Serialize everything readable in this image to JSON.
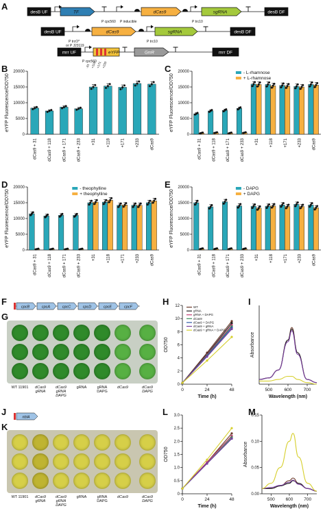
{
  "panels": {
    "A": "A",
    "B": "B",
    "C": "C",
    "D": "D",
    "E": "E",
    "F": "F",
    "G": "G",
    "H": "H",
    "I": "I",
    "J": "J",
    "K": "K",
    "L": "L",
    "M": "M"
  },
  "construct_a": {
    "row1": [
      "desB UF",
      "TF",
      "P cpc560",
      "P inducible",
      "dCas9",
      "P trc10",
      "sgRNA",
      "desB DF"
    ],
    "row2": [
      "desB UF",
      "dCas9",
      "P trc10",
      "sgRNA",
      "desB DF"
    ],
    "row2_promoters": [
      "P trcO*",
      "or P J23119"
    ],
    "row3": [
      "mrr UF",
      "P cpc560",
      "eYFP",
      "GmR",
      "mrr DF"
    ],
    "row3_sites": [
      "-31",
      "+118",
      "+171",
      "+233"
    ]
  },
  "colors": {
    "teal": "#2aa7b8",
    "orange": "#f6b041",
    "green": "#4a9a3c",
    "yellow": "#d8c23a",
    "black": "#111111"
  },
  "chart_data": [
    {
      "panel": "B",
      "type": "bar",
      "ylabel": "eYFP Fluorescence/OD750",
      "ylim": [
        0,
        20000
      ],
      "yticks": [
        "0",
        "5000",
        "10000",
        "15000",
        "20000"
      ],
      "categories": [
        "dCas9 + 31",
        "dCas9 + 118",
        "dCas9 + 171",
        "dCas9 + 233",
        "+31",
        "+118",
        "+171",
        "+233",
        "dCas9"
      ],
      "series": [
        {
          "values": [
            8300,
            7400,
            8600,
            8100,
            15000,
            15300,
            14900,
            16100,
            15900
          ]
        }
      ]
    },
    {
      "panel": "C",
      "type": "bar",
      "ylabel": "eYFP Fluorescence/OD750",
      "ylim": [
        0,
        20000
      ],
      "yticks": [
        "0",
        "5000",
        "10000",
        "15000",
        "20000"
      ],
      "categories": [
        "dCas9 + 31",
        "dCas9 + 118",
        "dCas9 + 171",
        "dCas9 + 233",
        "+31",
        "+118",
        "+171",
        "+233",
        "dCas9"
      ],
      "legend": [
        "- L-rhamnose",
        "+ L-rhamnose"
      ],
      "series": [
        {
          "name": "- L-rhamnose",
          "values": [
            6500,
            7400,
            7600,
            8200,
            15900,
            15800,
            15500,
            15200,
            15800
          ]
        },
        {
          "name": "+ L-rhamnose",
          "values": [
            400,
            500,
            400,
            500,
            15800,
            15400,
            15300,
            15000,
            15600
          ]
        }
      ]
    },
    {
      "panel": "D",
      "type": "bar",
      "ylabel": "eYFP Fluorescence/OD750",
      "ylim": [
        0,
        20000
      ],
      "yticks": [
        "0",
        "5000",
        "10000",
        "15000",
        "20000"
      ],
      "categories": [
        "dCas9 + 31",
        "dCas9 + 118",
        "dCas9 + 171",
        "dCas9 + 233",
        "+31",
        "+118",
        "+171",
        "+233",
        "dCas9"
      ],
      "legend": [
        "- theophylline",
        "+ theophylline"
      ],
      "series": [
        {
          "name": "- theophylline",
          "values": [
            11500,
            10800,
            11000,
            11000,
            15000,
            15200,
            14200,
            14200,
            15000
          ]
        },
        {
          "name": "+ theophylline",
          "values": [
            300,
            300,
            300,
            300,
            15200,
            15800,
            14300,
            14200,
            15600
          ]
        }
      ]
    },
    {
      "panel": "E",
      "type": "bar",
      "ylabel": "eYFP Fluorescence/OD750",
      "ylim": [
        0,
        20000
      ],
      "yticks": [
        "0",
        "5000",
        "10000",
        "15000",
        "20000"
      ],
      "categories": [
        "dCas9 + 31",
        "dCas9 + 118",
        "dCas9 + 171",
        "dCas9 + 233",
        "+31",
        "+118",
        "+171",
        "+233",
        "dCas9"
      ],
      "legend": [
        "- DAPG",
        "+ DAPG"
      ],
      "series": [
        {
          "name": "- DAPG",
          "values": [
            15000,
            13700,
            15300,
            14000,
            13900,
            13900,
            14300,
            14500,
            14300
          ]
        },
        {
          "name": "+ DAPG",
          "values": [
            400,
            400,
            400,
            400,
            13300,
            14000,
            13800,
            13800,
            13400
          ]
        }
      ]
    },
    {
      "panel": "H",
      "type": "line",
      "ylabel": "OD750",
      "xlabel": "Time (h)",
      "x": [
        0,
        24,
        48
      ],
      "ylim": [
        0,
        12
      ],
      "yticks": [
        "0",
        "2",
        "4",
        "6",
        "8",
        "10",
        "12"
      ],
      "xticks": [
        "0",
        "24",
        "48"
      ],
      "legend": [
        "WT",
        "gRNA",
        "gRNA + DAPG",
        "dCas9",
        "dCas9 + DAPG",
        "dCas9 + gRNA",
        "dCas9 + gRNA + DAPG"
      ],
      "series": [
        {
          "name": "WT",
          "color": "#6b3a2a",
          "values": [
            0.2,
            4.8,
            9.6
          ]
        },
        {
          "name": "gRNA",
          "color": "#1f1f1f",
          "values": [
            0.2,
            4.6,
            9.3
          ]
        },
        {
          "name": "gRNA + DAPG",
          "color": "#c23b73",
          "values": [
            0.2,
            4.5,
            9.0
          ]
        },
        {
          "name": "dCas9",
          "color": "#3d8e5a",
          "values": [
            0.2,
            4.4,
            8.8
          ]
        },
        {
          "name": "dCas9 + DAPG",
          "color": "#2d57a6",
          "values": [
            0.2,
            4.3,
            8.6
          ]
        },
        {
          "name": "dCas9 + gRNA",
          "color": "#7a3fa0",
          "values": [
            0.2,
            4.2,
            8.4
          ]
        },
        {
          "name": "dCas9 + gRNA + DAPG",
          "color": "#d6cf2c",
          "values": [
            0.2,
            3.6,
            7.2
          ]
        }
      ]
    },
    {
      "panel": "I",
      "type": "line",
      "ylabel": "Absorbance",
      "xlabel": "Wavelength (nm)",
      "xticks": [
        "500",
        "600",
        "700"
      ],
      "x": [
        450,
        500,
        550,
        600,
        620,
        650,
        700,
        750
      ],
      "ylim": [
        0,
        0.5
      ],
      "series": [
        {
          "name": "WT",
          "color": "#6b3a2a",
          "values": [
            0.03,
            0.04,
            0.09,
            0.28,
            0.36,
            0.2,
            0.03,
            0.01
          ]
        },
        {
          "name": "gRNA",
          "color": "#1f1f1f",
          "values": [
            0.03,
            0.04,
            0.09,
            0.28,
            0.35,
            0.2,
            0.03,
            0.01
          ]
        },
        {
          "name": "dCas9 + gRNA",
          "color": "#7a3fa0",
          "values": [
            0.03,
            0.04,
            0.09,
            0.27,
            0.34,
            0.19,
            0.03,
            0.01
          ]
        },
        {
          "name": "dCas9 + gRNA + DAPG",
          "color": "#d6cf2c",
          "values": [
            0.02,
            0.02,
            0.03,
            0.05,
            0.05,
            0.03,
            0.01,
            0.0
          ]
        }
      ]
    },
    {
      "panel": "L",
      "type": "line",
      "ylabel": "OD750",
      "xlabel": "Time (h)",
      "x": [
        0,
        24,
        48
      ],
      "ylim": [
        0,
        3.0
      ],
      "yticks": [
        "0",
        "0.5",
        "1.0",
        "1.5",
        "2.0",
        "2.5",
        "3.0"
      ],
      "xticks": [
        "0",
        "24",
        "48"
      ],
      "series": [
        {
          "name": "WT",
          "color": "#6b3a2a",
          "values": [
            0.2,
            1.2,
            2.3
          ]
        },
        {
          "name": "gRNA",
          "color": "#1f1f1f",
          "values": [
            0.2,
            1.2,
            2.2
          ]
        },
        {
          "name": "gRNA + DAPG",
          "color": "#c23b73",
          "values": [
            0.2,
            1.2,
            2.2
          ]
        },
        {
          "name": "dCas9",
          "color": "#3d8e5a",
          "values": [
            0.2,
            1.15,
            2.15
          ]
        },
        {
          "name": "dCas9 + DAPG",
          "color": "#2d57a6",
          "values": [
            0.2,
            1.15,
            2.1
          ]
        },
        {
          "name": "dCas9 + gRNA",
          "color": "#7a3fa0",
          "values": [
            0.2,
            1.15,
            2.1
          ]
        },
        {
          "name": "dCas9 + gRNA + DAPG",
          "color": "#d6cf2c",
          "values": [
            0.2,
            1.3,
            2.5
          ]
        }
      ]
    },
    {
      "panel": "M",
      "type": "line",
      "ylabel": "Absorbance",
      "xlabel": "Wavelength (nm)",
      "xticks": [
        "500",
        "600",
        "700"
      ],
      "yticks": [
        "0.00",
        "0.05",
        "0.10",
        "0.15"
      ],
      "x": [
        450,
        500,
        550,
        600,
        620,
        650,
        700,
        750
      ],
      "ylim": [
        0,
        0.15
      ],
      "series": [
        {
          "name": "WT",
          "color": "#6b3a2a",
          "values": [
            0.01,
            0.01,
            0.015,
            0.025,
            0.03,
            0.02,
            0.01,
            0.005
          ]
        },
        {
          "name": "gRNA",
          "color": "#1f1f1f",
          "values": [
            0.01,
            0.01,
            0.015,
            0.02,
            0.025,
            0.02,
            0.01,
            0.005
          ]
        },
        {
          "name": "dCas9 + gRNA",
          "color": "#7a3fa0",
          "values": [
            0.01,
            0.012,
            0.016,
            0.022,
            0.026,
            0.018,
            0.01,
            0.005
          ]
        },
        {
          "name": "dCas9 + gRNA + DAPG",
          "color": "#d6cf2c",
          "values": [
            0.01,
            0.02,
            0.05,
            0.1,
            0.115,
            0.07,
            0.02,
            0.005
          ]
        }
      ]
    }
  ],
  "operon_f": [
    "cpcB",
    "cpcA",
    "cpcC",
    "cpcD",
    "cpcE",
    "cpcF"
  ],
  "operon_j": [
    "nblA"
  ],
  "plate_g": {
    "labels": [
      "WT 11901",
      "dCas9 gRNA",
      "dCas9 gRNA DAPG",
      "gRNA",
      "gRNA DAPG",
      "dCas9",
      "dCas9 DAPG"
    ]
  },
  "plate_k": {
    "labels": [
      "WT 11901",
      "dCas9 gRNA",
      "dCas9 gRNA DAPG",
      "gRNA",
      "gRNA DAPG",
      "dCas9",
      "dCas9 DAPG"
    ]
  }
}
